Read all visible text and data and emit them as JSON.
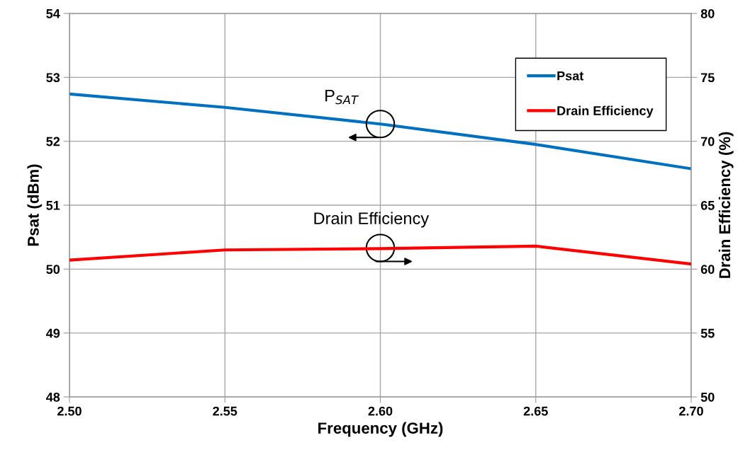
{
  "chart_data": {
    "type": "line",
    "xlabel": "Frequency (GHz)",
    "ylabel": "Psat (dBm)",
    "y2label": "Drain Efficiency (%)",
    "x": [
      2.5,
      2.55,
      2.6,
      2.65,
      2.7
    ],
    "series": [
      {
        "name": "Psat",
        "color": "#0070c0",
        "values": [
          52.74,
          52.53,
          52.27,
          51.95,
          51.57
        ]
      },
      {
        "name": "Drain Efficiency",
        "color": "#ff0000",
        "axis": "y2",
        "values": [
          60.7,
          61.5,
          61.6,
          61.8,
          60.4
        ]
      }
    ],
    "xlim": [
      2.5,
      2.7
    ],
    "xticks": [
      {
        "value": 2.5,
        "label": "2.50"
      },
      2.55,
      {
        "value": 2.6,
        "label": "2.60"
      },
      2.65,
      {
        "value": 2.7,
        "label": "2.70"
      }
    ],
    "ylim": [
      48,
      54
    ],
    "yticks": [
      48,
      49,
      50,
      51,
      52,
      53,
      54
    ],
    "y2lim": [
      50,
      80
    ],
    "y2ticks": [
      50,
      55,
      60,
      65,
      70,
      75,
      80
    ],
    "grid": true,
    "legend": "top right",
    "marker": "none",
    "line_style": "solid",
    "annotations": [
      {
        "text": "P$_{SAT}$",
        "x": 2.6,
        "y": 52.27
      },
      {
        "text": "Drain Efficiency",
        "x": 2.6,
        "y": 50.33
      }
    ]
  }
}
